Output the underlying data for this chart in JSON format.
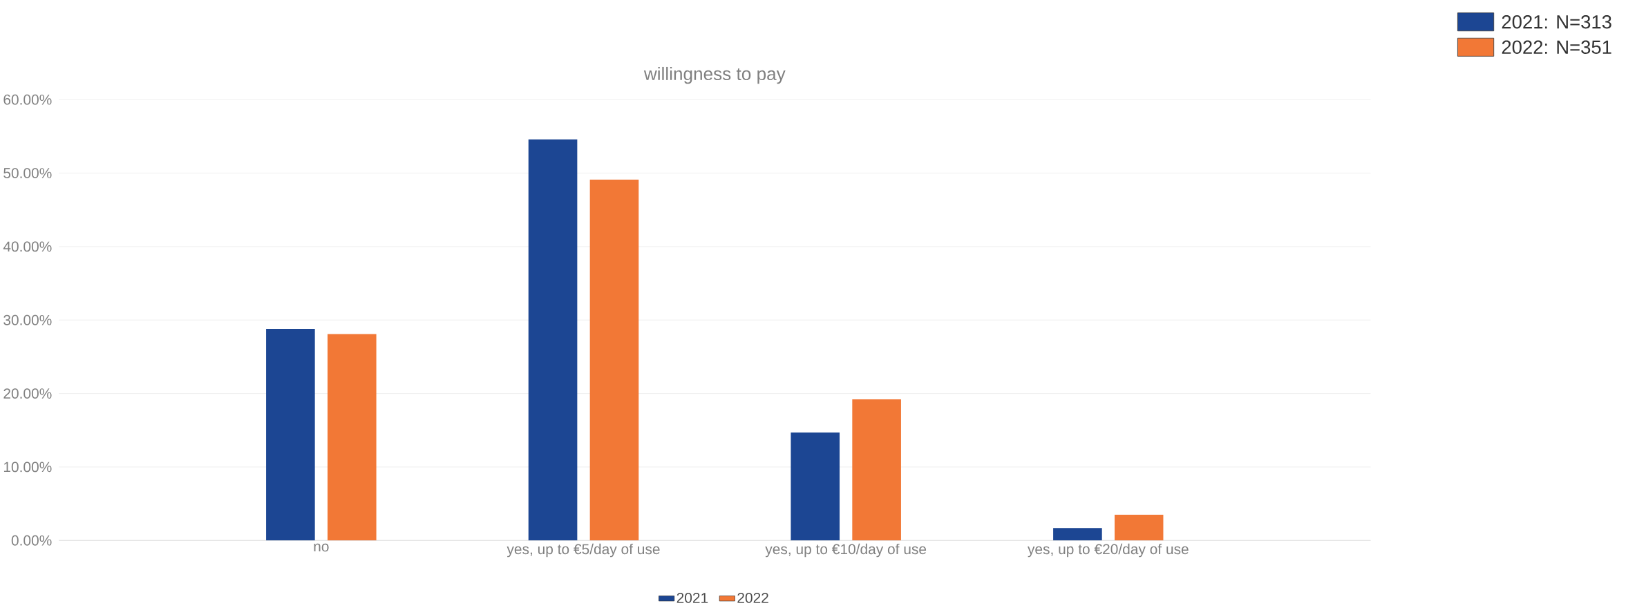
{
  "chart_data": {
    "type": "bar",
    "title": "willingness to pay",
    "categories": [
      "no",
      "yes, up to €5/day of use",
      "yes, up to €10/day of use",
      "yes, up to €20/day of use"
    ],
    "series": [
      {
        "name": "2021",
        "color": "#1c4693",
        "values": [
          28.8,
          54.6,
          14.7,
          1.7
        ]
      },
      {
        "name": "2022",
        "color": "#f27836",
        "values": [
          28.1,
          49.1,
          19.2,
          3.5
        ]
      }
    ],
    "ylim": [
      0,
      60
    ],
    "yticks": [
      {
        "value": 0,
        "label": "0.00%"
      },
      {
        "value": 10,
        "label": "10.00%"
      },
      {
        "value": 20,
        "label": "20.00%"
      },
      {
        "value": 30,
        "label": "30.00%"
      },
      {
        "value": 40,
        "label": "40.00%"
      },
      {
        "value": 50,
        "label": "50.00%"
      },
      {
        "value": 60,
        "label": "60.00%"
      }
    ],
    "grid": "y",
    "legend": "bottom",
    "annotations": [
      "2021: N=313",
      "2022: N=351"
    ]
  }
}
